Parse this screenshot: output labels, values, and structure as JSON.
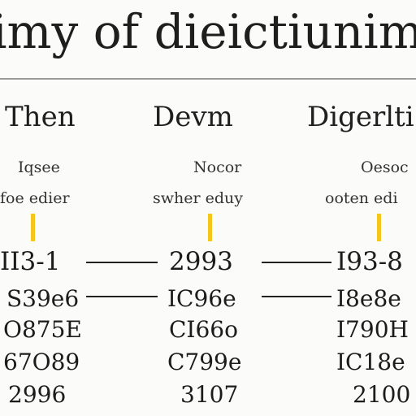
{
  "title": "imy of dieictiunim",
  "columns": [
    {
      "heading": "Then",
      "sub1": "Iqsee",
      "sub2": "foe edier",
      "rows": [
        "II3-1",
        "S39e6",
        "O875E",
        "67O89",
        "2996"
      ]
    },
    {
      "heading": "Devm",
      "sub1": "Nocor",
      "sub2": "swher eduy",
      "rows": [
        "2993",
        "IC96e",
        "CI66o",
        "C799e",
        "3107"
      ]
    },
    {
      "heading": "Digerlti",
      "sub1": "Oesoc",
      "sub2": "ooten edi",
      "rows": [
        "I93-8",
        "I8e8e",
        "I790H",
        "IC18e",
        "2100"
      ]
    }
  ],
  "colors": {
    "marker": "#f3c619",
    "rule": "#9a9a9a",
    "background": "#fbfbfa"
  }
}
